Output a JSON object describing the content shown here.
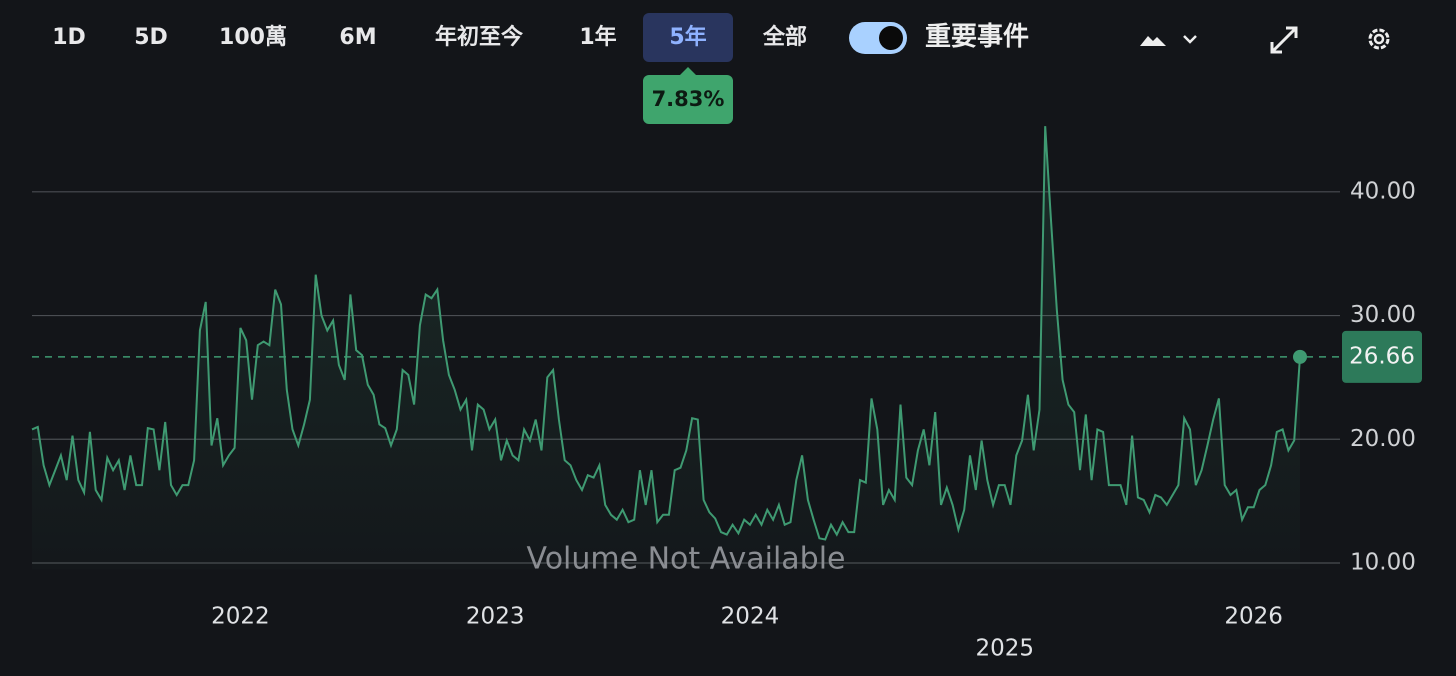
{
  "toolbar": {
    "buttons": [
      "1D",
      "5D",
      "100萬",
      "6M",
      "年初至今",
      "1年",
      "5年",
      "全部"
    ],
    "active": 6,
    "change_badge": "7.83%",
    "events_label": "重要事件",
    "events_on": true
  },
  "chart_data": {
    "type": "line",
    "categories": [
      null,
      null,
      null,
      null,
      null,
      null,
      null,
      null,
      null,
      null,
      null,
      null,
      null,
      null,
      null,
      null,
      null,
      null,
      null,
      null,
      null,
      null,
      null,
      null,
      null,
      null,
      null,
      null,
      null,
      null,
      null,
      null,
      null,
      null,
      null,
      null,
      "2022",
      null,
      null,
      null,
      null,
      null,
      null,
      null,
      null,
      null,
      null,
      null,
      null,
      null,
      null,
      null,
      null,
      null,
      null,
      null,
      null,
      null,
      null,
      null,
      null,
      null,
      null,
      null,
      null,
      null,
      null,
      null,
      null,
      null,
      null,
      null,
      null,
      null,
      null,
      null,
      null,
      null,
      null,
      null,
      "2023",
      null,
      null,
      null,
      null,
      null,
      null,
      null,
      null,
      null,
      null,
      null,
      null,
      null,
      null,
      null,
      null,
      null,
      null,
      null,
      null,
      null,
      null,
      null,
      null,
      null,
      null,
      null,
      null,
      null,
      null,
      null,
      null,
      null,
      null,
      null,
      null,
      null,
      null,
      null,
      null,
      null,
      null,
      null,
      "2024",
      null,
      null,
      null,
      null,
      null,
      null,
      null,
      null,
      null,
      null,
      null,
      null,
      null,
      null,
      null,
      null,
      null,
      null,
      null,
      null,
      null,
      null,
      null,
      null,
      null,
      null,
      null,
      null,
      null,
      null,
      null,
      null,
      null,
      null,
      null,
      null,
      null,
      null,
      null,
      null,
      null,
      null,
      null,
      "2025",
      null,
      null,
      null,
      null,
      null,
      null,
      null,
      null,
      null,
      null,
      null,
      null,
      null,
      null,
      null,
      null,
      null,
      null,
      null,
      null,
      null,
      null,
      null,
      null,
      null,
      null,
      null,
      null,
      null,
      null,
      null,
      null,
      null,
      null,
      null,
      null,
      null,
      null,
      null,
      null,
      null,
      null,
      "2026",
      null,
      null,
      null,
      null,
      null,
      null,
      null,
      null
    ],
    "series": [
      {
        "color": "#3f9a72",
        "values": [
          20.8,
          21.0,
          17.9,
          16.3,
          17.5,
          18.7,
          16.7,
          20.3,
          16.7,
          15.7,
          20.6,
          15.9,
          15.1,
          18.5,
          17.5,
          18.3,
          15.9,
          18.7,
          16.3,
          16.3,
          20.9,
          20.8,
          17.5,
          21.4,
          16.3,
          15.5,
          16.3,
          16.3,
          18.3,
          28.8,
          31.1,
          19.5,
          21.7,
          17.9,
          18.7,
          19.3,
          29.0,
          28.0,
          23.2,
          27.6,
          27.9,
          27.6,
          32.1,
          30.9,
          24.0,
          20.8,
          19.5,
          21.2,
          23.2,
          33.3,
          30.0,
          28.8,
          29.6,
          26.0,
          24.8,
          31.7,
          27.2,
          26.8,
          24.4,
          23.6,
          21.2,
          20.9,
          19.5,
          20.8,
          25.6,
          25.2,
          22.8,
          29.2,
          31.7,
          31.4,
          32.1,
          28.0,
          25.2,
          24.0,
          22.4,
          23.2,
          19.1,
          22.8,
          22.4,
          20.8,
          21.6,
          18.3,
          19.9,
          18.7,
          18.3,
          20.8,
          19.9,
          21.6,
          19.1,
          25.0,
          25.6,
          21.6,
          18.3,
          17.9,
          16.7,
          15.9,
          17.1,
          16.9,
          17.9,
          14.7,
          13.9,
          13.5,
          14.3,
          13.3,
          13.5,
          17.5,
          14.7,
          17.5,
          13.3,
          13.9,
          13.9,
          17.5,
          17.7,
          19.1,
          21.7,
          21.6,
          15.1,
          14.1,
          13.6,
          12.5,
          12.3,
          13.1,
          12.4,
          13.5,
          13.1,
          13.9,
          13.1,
          14.3,
          13.5,
          14.7,
          13.1,
          13.3,
          16.7,
          18.7,
          15.1,
          13.5,
          12.0,
          11.9,
          13.1,
          12.3,
          13.3,
          12.5,
          12.5,
          16.7,
          16.5,
          23.3,
          20.8,
          14.7,
          15.9,
          15.1,
          22.8,
          16.9,
          16.3,
          19.1,
          20.8,
          17.9,
          22.2,
          14.7,
          16.1,
          14.7,
          12.7,
          14.3,
          18.7,
          15.9,
          19.9,
          16.7,
          14.7,
          16.3,
          16.3,
          14.7,
          18.7,
          19.9,
          23.6,
          19.1,
          22.4,
          45.3,
          37.7,
          30.5,
          24.8,
          22.8,
          22.2,
          17.5,
          22.0,
          16.7,
          20.8,
          20.6,
          16.3,
          16.3,
          16.3,
          14.7,
          20.3,
          15.3,
          15.1,
          14.1,
          15.5,
          15.3,
          14.7,
          15.5,
          16.3,
          21.7,
          20.8,
          16.3,
          17.5,
          19.5,
          21.6,
          23.3,
          16.3,
          15.5,
          15.9,
          13.5,
          14.5,
          14.5,
          15.9,
          16.3,
          17.9,
          20.6,
          20.8,
          19.1,
          19.9,
          26.66
        ]
      }
    ],
    "last_value": 26.66,
    "ylim": [
      9.5,
      47.5
    ],
    "yticks": [
      {
        "value": 10,
        "label": "10.00"
      },
      {
        "value": 20,
        "label": "20.00"
      },
      {
        "value": 30,
        "label": "30.00"
      },
      {
        "value": 40,
        "label": "40.00"
      }
    ],
    "grid": true,
    "annotation": "Volume Not Available"
  }
}
